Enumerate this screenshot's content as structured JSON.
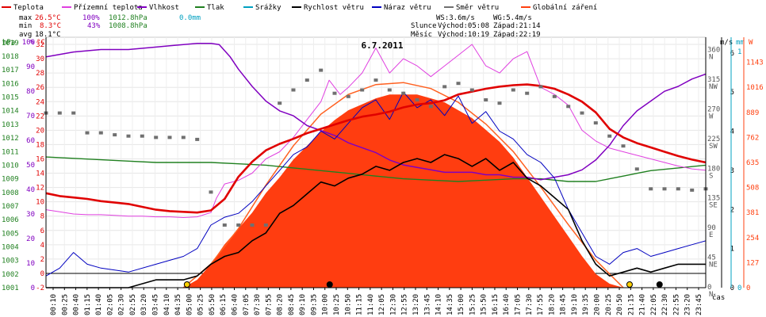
{
  "chart_data": {
    "type": "line",
    "title": "6.7.2011",
    "xlabel": "čas",
    "legend": [
      {
        "label": "Teplota",
        "color": "#e00000"
      },
      {
        "label": "Přízemní teplota",
        "color": "#e040e0"
      },
      {
        "label": "Vlhkost",
        "color": "#8000c0"
      },
      {
        "label": "Tlak",
        "color": "#208020"
      },
      {
        "label": "Srážky",
        "color": "#00a0c0"
      },
      {
        "label": "Rychlost větru",
        "color": "#000000"
      },
      {
        "label": "Náraz větru",
        "color": "#0000c0"
      },
      {
        "label": "Směr větru",
        "color": "#707070"
      },
      {
        "label": "Globální záření",
        "color": "#ff4010"
      }
    ],
    "stats": {
      "max": {
        "label": "max",
        "temp": "26.5°C",
        "hum": "100%",
        "press": "1012.8hPa",
        "rain": "0.0mm"
      },
      "min": {
        "label": "min",
        "temp": "8.3°C",
        "hum": "43%",
        "press": "1008.8hPa"
      },
      "avg": {
        "label": "avg",
        "temp": "18.1°C"
      }
    },
    "wind_info": {
      "ws": "WS:3.6m/s",
      "wg": "WG:5.4m/s"
    },
    "sun_info": {
      "slunce_label": "Slunce",
      "slunce_rise": "Východ:05:08",
      "slunce_set": "Západ:21:14",
      "mesic_label": "Měsíc",
      "mesic_rise": "Východ:10:19",
      "mesic_set": "Západ:22:19"
    },
    "axes": {
      "hpa": {
        "unit": "hPa",
        "ticks": [
          "1019",
          "1018",
          "1017",
          "1016",
          "1015",
          "1014",
          "1013",
          "1012",
          "1011",
          "1010",
          "1009",
          "1008",
          "1007",
          "1006",
          "1005",
          "1004",
          "1003",
          "1002",
          "1001"
        ],
        "color": "#208020"
      },
      "pct": {
        "unit": "%",
        "ticks": [
          "100",
          "90",
          "80",
          "70",
          "60",
          "50",
          "40",
          "30",
          "20",
          "10",
          "0"
        ],
        "color": "#8000c0"
      },
      "celsius": {
        "unit": "°C",
        "ticks": [
          "32",
          "30",
          "28",
          "26",
          "24",
          "22",
          "20",
          "18",
          "16",
          "14",
          "12",
          "10",
          "8",
          "6",
          "4",
          "2",
          "0",
          "-2"
        ],
        "color": "#e00000"
      },
      "direction": {
        "degrees": [
          "360",
          "315",
          "270",
          "225",
          "180",
          "135",
          "90",
          "45",
          "0"
        ],
        "names": [
          "N",
          "NW",
          "W",
          "SW",
          "S",
          "SE",
          "E",
          "NE",
          "N"
        ]
      },
      "ms": {
        "unit": "m/s",
        "ticks": [
          "6",
          "5",
          "4",
          "3",
          "2",
          "1",
          "0"
        ]
      },
      "mm": {
        "unit": "mm",
        "ticks": [
          "1",
          "0"
        ],
        "color": "#00a0c0"
      },
      "w": {
        "unit": "W",
        "ticks": [
          "1143",
          "1016",
          "889",
          "762",
          "635",
          "508",
          "381",
          "254",
          "127",
          "0"
        ],
        "color": "#ff4010"
      }
    },
    "x_ticks": [
      "00:10",
      "00:25",
      "00:40",
      "01:15",
      "01:40",
      "02:05",
      "02:30",
      "02:55",
      "03:20",
      "03:45",
      "04:10",
      "04:35",
      "05:00",
      "05:25",
      "05:50",
      "06:15",
      "06:40",
      "07:05",
      "07:30",
      "07:55",
      "08:20",
      "08:45",
      "09:10",
      "09:35",
      "10:00",
      "10:25",
      "10:50",
      "11:15",
      "11:40",
      "12:05",
      "12:30",
      "12:55",
      "13:20",
      "13:45",
      "14:10",
      "14:35",
      "15:00",
      "15:25",
      "15:50",
      "16:15",
      "16:40",
      "17:05",
      "17:30",
      "17:55",
      "18:20",
      "18:45",
      "19:10",
      "19:35",
      "20:00",
      "20:25",
      "20:50",
      "21:15",
      "21:40",
      "22:05",
      "22:30",
      "22:55",
      "23:20",
      "23:45"
    ],
    "xlim": [
      0,
      24
    ],
    "series_temperature": {
      "x": [
        0,
        0.5,
        1,
        1.5,
        2,
        2.5,
        3,
        3.5,
        4,
        4.5,
        5,
        5.5,
        6,
        6.5,
        7,
        7.5,
        8,
        8.5,
        9,
        9.5,
        10,
        10.5,
        11,
        11.5,
        12,
        12.5,
        13,
        13.5,
        14,
        14.5,
        15,
        15.5,
        16,
        16.5,
        17,
        17.5,
        18,
        18.5,
        19,
        19.5,
        20,
        20.5,
        21,
        21.5,
        22,
        22.5,
        23,
        23.5,
        24
      ],
      "y": [
        11.2,
        10.8,
        10.6,
        10.4,
        10.1,
        9.9,
        9.7,
        9.3,
        8.9,
        8.7,
        8.6,
        8.5,
        8.8,
        10.4,
        13.5,
        15.6,
        17.2,
        18.1,
        18.8,
        19.6,
        20.2,
        20.8,
        21.4,
        21.9,
        22.2,
        22.6,
        23.2,
        23.6,
        23.8,
        24.2,
        25.0,
        25.4,
        25.8,
        26.1,
        26.3,
        26.4,
        26.2,
        25.8,
        25.0,
        24.0,
        22.5,
        20.2,
        19.0,
        18.2,
        17.6,
        17.0,
        16.4,
        15.9,
        15.5
      ]
    },
    "series_ground_temp": {
      "x": [
        0,
        0.5,
        1,
        1.5,
        2,
        2.5,
        3,
        3.5,
        4,
        4.5,
        5,
        5.5,
        6,
        6.2,
        6.5,
        7,
        7.5,
        8,
        8.5,
        9,
        9.5,
        10,
        10.3,
        10.7,
        11,
        11.5,
        12,
        12.5,
        13,
        13.5,
        14,
        14.5,
        15,
        15.5,
        16,
        16.5,
        17,
        17.5,
        18,
        18.5,
        19,
        19.5,
        20,
        20.5,
        21,
        21.5,
        22,
        22.5,
        23,
        23.5,
        24
      ],
      "y": [
        8.9,
        8.6,
        8.3,
        8.2,
        8.2,
        8.1,
        8.0,
        8.0,
        7.9,
        7.9,
        7.8,
        7.9,
        8.5,
        10.5,
        12.5,
        13.0,
        14.0,
        16.0,
        17.0,
        19.0,
        21.5,
        24.0,
        27.0,
        25.0,
        26.0,
        28.0,
        31.5,
        28.0,
        30.0,
        29.0,
        27.5,
        29.0,
        30.5,
        32.0,
        29.0,
        28.0,
        30.0,
        31.0,
        26.0,
        25.0,
        23.5,
        20.0,
        18.5,
        17.5,
        17.0,
        16.5,
        16.0,
        15.5,
        15.0,
        14.6,
        14.4
      ]
    },
    "series_humidity": {
      "x": [
        0,
        1,
        2,
        3,
        4,
        4.5,
        5,
        5.5,
        6,
        6.3,
        6.7,
        7,
        7.5,
        8,
        8.5,
        9,
        9.5,
        10,
        10.5,
        11,
        11.5,
        12,
        12.5,
        13,
        13.5,
        14,
        14.5,
        15,
        15.5,
        16,
        16.5,
        17,
        17.5,
        18,
        18.5,
        19,
        19.5,
        20,
        20.5,
        21,
        21.5,
        22,
        22.5,
        23,
        23.5,
        24
      ],
      "y": [
        94,
        96,
        97,
        97,
        98,
        98.5,
        99,
        99.5,
        99.5,
        99,
        94,
        89,
        82,
        76,
        72,
        70,
        66,
        64,
        62,
        59,
        57,
        55,
        52,
        50,
        49,
        48,
        47,
        47,
        47,
        46,
        46,
        45,
        45,
        44,
        45,
        46,
        48,
        52,
        58,
        66,
        72,
        76,
        80,
        82,
        85,
        87
      ]
    },
    "series_pressure": {
      "x": [
        0,
        1,
        2,
        3,
        4,
        5,
        6,
        7,
        8,
        9,
        10,
        11,
        12,
        13,
        14,
        15,
        16,
        17,
        18,
        19,
        20,
        20.5,
        21,
        21.5,
        22,
        23,
        24
      ],
      "y": [
        1010.6,
        1010.5,
        1010.4,
        1010.3,
        1010.2,
        1010.2,
        1010.2,
        1010.1,
        1010.0,
        1009.8,
        1009.6,
        1009.4,
        1009.2,
        1009.0,
        1008.9,
        1008.8,
        1008.9,
        1009.0,
        1009.0,
        1008.8,
        1008.8,
        1009.0,
        1009.2,
        1009.4,
        1009.6,
        1009.8,
        1010.0
      ]
    },
    "series_wind_speed": {
      "x": [
        0,
        1,
        2,
        3,
        4,
        5,
        5.5,
        6,
        6.5,
        7,
        7.5,
        8,
        8.5,
        9,
        9.5,
        10,
        10.5,
        11,
        11.5,
        12,
        12.5,
        13,
        13.5,
        14,
        14.5,
        15,
        15.5,
        16,
        16.5,
        17,
        17.5,
        18,
        18.5,
        19,
        19.5,
        20,
        20.5,
        21,
        21.5,
        22,
        22.5,
        23,
        23.5,
        24
      ],
      "y": [
        0,
        0,
        0,
        0,
        0.2,
        0.2,
        0.3,
        0.6,
        0.8,
        0.9,
        1.2,
        1.4,
        1.9,
        2.1,
        2.4,
        2.7,
        2.6,
        2.8,
        2.9,
        3.1,
        3.0,
        3.2,
        3.3,
        3.2,
        3.4,
        3.3,
        3.1,
        3.3,
        3.0,
        3.2,
        2.8,
        2.6,
        2.3,
        2.0,
        1.2,
        0.6,
        0.3,
        0.4,
        0.5,
        0.4,
        0.5,
        0.6,
        0.6,
        0.6
      ]
    },
    "series_wind_gust": {
      "x": [
        0,
        0.5,
        1,
        1.5,
        2,
        3,
        4,
        5,
        5.5,
        6,
        6.5,
        7,
        7.5,
        8,
        8.5,
        9,
        9.5,
        10,
        10.5,
        11,
        11.5,
        12,
        12.5,
        13,
        13.5,
        14,
        14.5,
        15,
        15.5,
        16,
        16.5,
        17,
        17.5,
        18,
        18.5,
        19,
        19.5,
        20,
        20.5,
        21,
        21.5,
        22,
        22.5,
        23,
        23.5,
        24
      ],
      "y": [
        0.3,
        0.5,
        0.9,
        0.6,
        0.5,
        0.4,
        0.6,
        0.8,
        1.0,
        1.6,
        1.8,
        1.9,
        2.2,
        2.6,
        3.0,
        3.4,
        3.6,
        4.0,
        3.8,
        4.2,
        4.6,
        4.8,
        4.3,
        5.0,
        4.6,
        4.8,
        4.4,
        4.9,
        4.2,
        4.5,
        4.0,
        3.8,
        3.4,
        3.2,
        2.8,
        2.0,
        1.4,
        0.8,
        0.6,
        0.9,
        1.0,
        0.8,
        0.9,
        1.0,
        1.1,
        1.2
      ]
    },
    "series_wind_dir_deg": {
      "x": [
        0,
        0.5,
        1,
        1.5,
        2,
        2.5,
        3,
        3.5,
        4,
        4.5,
        5,
        5.5,
        6,
        6.5,
        7,
        7.5,
        8,
        8.5,
        9,
        9.5,
        10,
        10.5,
        11,
        11.5,
        12,
        12.5,
        13,
        13.5,
        14,
        14.5,
        15,
        15.5,
        16,
        16.5,
        17,
        17.5,
        18,
        18.5,
        19,
        19.5,
        20,
        20.5,
        21,
        21.5,
        22,
        22.5,
        23,
        23.5,
        24
      ],
      "y": [
        265,
        265,
        265,
        235,
        235,
        232,
        230,
        230,
        228,
        228,
        228,
        225,
        145,
        95,
        95,
        95,
        95,
        280,
        300,
        315,
        330,
        295,
        290,
        300,
        315,
        300,
        295,
        285,
        275,
        305,
        310,
        300,
        285,
        280,
        300,
        295,
        305,
        290,
        275,
        265,
        250,
        230,
        215,
        180,
        150,
        150,
        150,
        148,
        150
      ]
    },
    "series_radiation": {
      "x": [
        5,
        5.5,
        6,
        6.5,
        7,
        7.5,
        8,
        8.5,
        9,
        9.5,
        10,
        10.5,
        11,
        11.5,
        12,
        12.5,
        13,
        13.5,
        14,
        14.5,
        15,
        15.5,
        16,
        16.5,
        17,
        17.5,
        18,
        18.5,
        19,
        19.5,
        20,
        20.5,
        21
      ],
      "y": [
        0,
        40,
        120,
        220,
        300,
        380,
        480,
        560,
        650,
        720,
        790,
        850,
        900,
        930,
        960,
        980,
        980,
        980,
        960,
        940,
        900,
        860,
        800,
        740,
        660,
        560,
        460,
        360,
        260,
        160,
        70,
        20,
        0
      ]
    },
    "series_clear_sky_radiation": {
      "x": [
        5,
        6,
        7,
        8,
        9,
        10,
        11,
        12,
        13,
        14,
        15,
        16,
        17,
        18,
        19,
        20,
        21
      ],
      "y": [
        0,
        120,
        300,
        520,
        720,
        880,
        980,
        1030,
        1040,
        1010,
        940,
        830,
        690,
        510,
        320,
        140,
        0
      ]
    }
  }
}
